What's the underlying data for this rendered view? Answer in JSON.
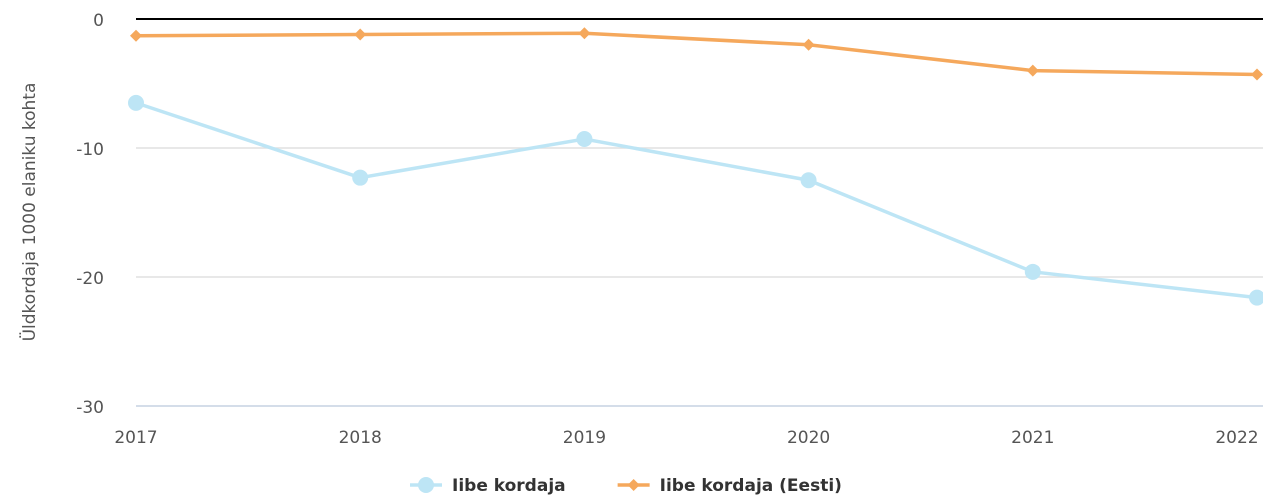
{
  "chart_data": {
    "type": "line",
    "y_label": "Üldkordaja 1000 elaniku kohta",
    "categories": [
      "2017",
      "2018",
      "2019",
      "2020",
      "2021",
      "2022"
    ],
    "series": [
      {
        "name": "Iibe kordaja",
        "color": "#bde5f5",
        "marker": "circle",
        "values": [
          -6.5,
          -12.3,
          -9.3,
          -12.5,
          -19.6,
          -21.6
        ]
      },
      {
        "name": "Iibe kordaja (Eesti)",
        "color": "#f5a85c",
        "marker": "diamond",
        "values": [
          -1.3,
          -1.2,
          -1.1,
          -2.0,
          -4.0,
          -4.3
        ]
      }
    ],
    "ylim": [
      -30,
      0
    ],
    "yticks": [
      -30,
      -20,
      -10,
      0
    ],
    "grid": true,
    "legend": "bottom"
  }
}
